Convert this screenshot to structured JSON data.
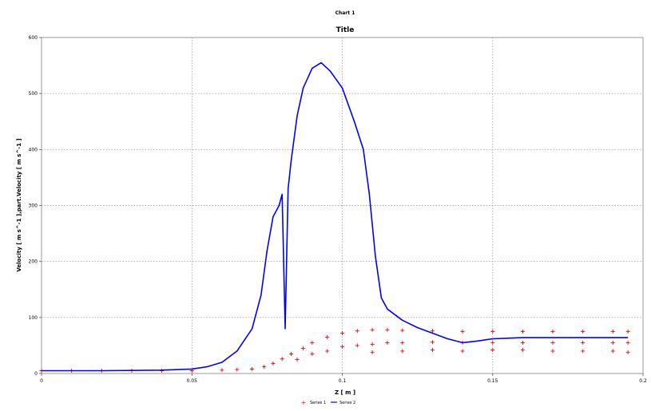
{
  "window": {
    "title": "Chart 1"
  },
  "chart_data": {
    "type": "line",
    "title": "Title",
    "xlabel": "Z [ m ]",
    "ylabel": "Velocity [ m s^-1 ],part.Velocity [ m s^-1 ]",
    "xlim": [
      0,
      0.2
    ],
    "ylim": [
      0,
      600
    ],
    "x_ticks": [
      0,
      0.05,
      0.1,
      0.15,
      0.2
    ],
    "x_tick_labels": [
      "0",
      "0.05",
      "0.1",
      "0.15",
      "0.2"
    ],
    "y_ticks": [
      0,
      100,
      200,
      300,
      400,
      500,
      600
    ],
    "y_tick_labels": [
      "0",
      "100",
      "200",
      "300",
      "400",
      "500",
      "600"
    ],
    "grid": true,
    "legend": "bottom",
    "series": [
      {
        "name": "Series 1",
        "color": "#ff0000",
        "marker": "plus",
        "points": [
          [
            0.0,
            5
          ],
          [
            0.01,
            5
          ],
          [
            0.02,
            5
          ],
          [
            0.03,
            5
          ],
          [
            0.04,
            5
          ],
          [
            0.05,
            5
          ],
          [
            0.06,
            6
          ],
          [
            0.065,
            7
          ],
          [
            0.07,
            8
          ],
          [
            0.074,
            12
          ],
          [
            0.077,
            18
          ],
          [
            0.08,
            26
          ],
          [
            0.083,
            35
          ],
          [
            0.087,
            45
          ],
          [
            0.09,
            55
          ],
          [
            0.095,
            65
          ],
          [
            0.1,
            72
          ],
          [
            0.105,
            76
          ],
          [
            0.11,
            78
          ],
          [
            0.115,
            78
          ],
          [
            0.12,
            77
          ],
          [
            0.13,
            76
          ],
          [
            0.14,
            75
          ],
          [
            0.15,
            75
          ],
          [
            0.16,
            75
          ],
          [
            0.17,
            75
          ],
          [
            0.18,
            75
          ],
          [
            0.19,
            75
          ],
          [
            0.195,
            75
          ],
          [
            0.085,
            25
          ],
          [
            0.09,
            35
          ],
          [
            0.095,
            40
          ],
          [
            0.1,
            48
          ],
          [
            0.105,
            50
          ],
          [
            0.11,
            52
          ],
          [
            0.115,
            55
          ],
          [
            0.12,
            55
          ],
          [
            0.13,
            56
          ],
          [
            0.14,
            55
          ],
          [
            0.15,
            55
          ],
          [
            0.16,
            55
          ],
          [
            0.17,
            55
          ],
          [
            0.18,
            55
          ],
          [
            0.19,
            55
          ],
          [
            0.195,
            55
          ],
          [
            0.11,
            38
          ],
          [
            0.12,
            40
          ],
          [
            0.13,
            42
          ],
          [
            0.14,
            40
          ],
          [
            0.15,
            42
          ],
          [
            0.16,
            42
          ],
          [
            0.17,
            40
          ],
          [
            0.18,
            40
          ],
          [
            0.19,
            40
          ],
          [
            0.195,
            38
          ]
        ]
      },
      {
        "name": "Series 2",
        "color": "#0000ff",
        "marker": "line",
        "points": [
          [
            0.0,
            5
          ],
          [
            0.02,
            5
          ],
          [
            0.04,
            6
          ],
          [
            0.05,
            8
          ],
          [
            0.055,
            12
          ],
          [
            0.06,
            20
          ],
          [
            0.065,
            40
          ],
          [
            0.07,
            80
          ],
          [
            0.073,
            140
          ],
          [
            0.075,
            220
          ],
          [
            0.077,
            280
          ],
          [
            0.079,
            300
          ],
          [
            0.08,
            320
          ],
          [
            0.081,
            80
          ],
          [
            0.082,
            330
          ],
          [
            0.083,
            380
          ],
          [
            0.085,
            460
          ],
          [
            0.087,
            510
          ],
          [
            0.09,
            545
          ],
          [
            0.093,
            555
          ],
          [
            0.096,
            540
          ],
          [
            0.1,
            510
          ],
          [
            0.104,
            450
          ],
          [
            0.107,
            400
          ],
          [
            0.109,
            320
          ],
          [
            0.111,
            210
          ],
          [
            0.113,
            135
          ],
          [
            0.115,
            115
          ],
          [
            0.12,
            95
          ],
          [
            0.125,
            82
          ],
          [
            0.13,
            72
          ],
          [
            0.135,
            62
          ],
          [
            0.14,
            55
          ],
          [
            0.145,
            58
          ],
          [
            0.15,
            62
          ],
          [
            0.16,
            64
          ],
          [
            0.17,
            64
          ],
          [
            0.18,
            64
          ],
          [
            0.19,
            64
          ],
          [
            0.195,
            64
          ]
        ]
      }
    ]
  }
}
